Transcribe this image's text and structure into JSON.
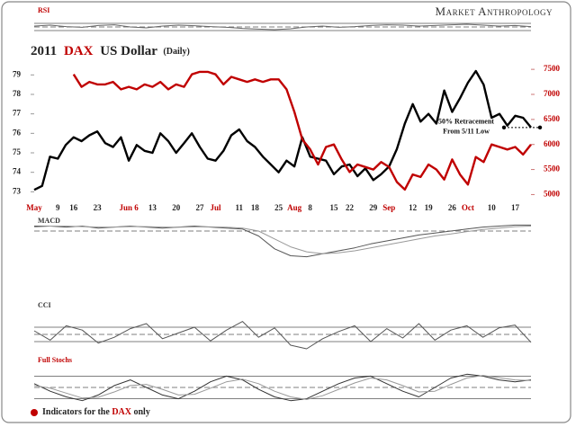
{
  "brand": "Market Anthropology",
  "footer": {
    "text1": "Indicators for the",
    "highlight": "DAX",
    "text2": "only"
  },
  "chart_data": [
    {
      "type": "line",
      "title_parts": [
        "2011",
        "DAX",
        "US Dollar",
        "(Daily)"
      ],
      "categories": [
        "May",
        null,
        null,
        "9",
        null,
        "16",
        null,
        null,
        "23",
        null,
        null,
        null,
        "Jun 6",
        null,
        null,
        "13",
        null,
        null,
        "20",
        null,
        null,
        "27",
        null,
        "Jul",
        null,
        null,
        "11",
        null,
        "18",
        null,
        null,
        "25",
        null,
        "Aug",
        null,
        "8",
        null,
        null,
        "15",
        null,
        "22",
        null,
        null,
        "29",
        null,
        "Sep",
        null,
        null,
        "12",
        null,
        "19",
        null,
        null,
        "26",
        null,
        "Oct",
        null,
        null,
        "10",
        null,
        null,
        "17",
        null,
        null
      ],
      "month_color": "#c00000",
      "series": [
        {
          "name": "US Dollar",
          "color": "#000000",
          "values": [
            73.1,
            73.3,
            74.8,
            74.7,
            75.4,
            75.8,
            75.6,
            75.9,
            76.1,
            75.5,
            75.3,
            75.8,
            74.6,
            75.4,
            75.1,
            75.0,
            76.0,
            75.6,
            75.0,
            75.5,
            76.0,
            75.3,
            74.7,
            74.6,
            75.1,
            75.9,
            76.2,
            75.6,
            75.3,
            74.8,
            74.4,
            74.0,
            74.6,
            74.3,
            75.8,
            74.8,
            74.7,
            74.6,
            73.9,
            74.3,
            74.4,
            73.8,
            74.2,
            73.6,
            73.9,
            74.3,
            75.2,
            76.5,
            77.5,
            76.6,
            77.0,
            76.5,
            78.2,
            77.1,
            77.8,
            78.6,
            79.2,
            78.5,
            76.8,
            77.0,
            76.4,
            76.9,
            76.8,
            76.3
          ]
        },
        {
          "name": "DAX",
          "color": "#c00000",
          "axis": "y2",
          "values": [
            null,
            null,
            null,
            null,
            null,
            7400,
            7150,
            7250,
            7200,
            7200,
            7250,
            7100,
            7150,
            7100,
            7200,
            7150,
            7250,
            7100,
            7200,
            7150,
            7400,
            7450,
            7450,
            7400,
            7200,
            7350,
            7300,
            7250,
            7300,
            7250,
            7300,
            7300,
            7100,
            6650,
            6100,
            5900,
            5600,
            5950,
            6000,
            5700,
            5450,
            5600,
            5550,
            5500,
            5650,
            5550,
            5250,
            5100,
            5400,
            5350,
            5600,
            5500,
            5300,
            5700,
            5400,
            5200,
            5750,
            5650,
            6000,
            5950,
            5900,
            5950,
            5800,
            6000
          ]
        }
      ],
      "ylim": [
        72.6,
        79.8
      ],
      "yticks": [
        73,
        74,
        75,
        76,
        77,
        78,
        79
      ],
      "y2lim": [
        4900,
        7700
      ],
      "y2ticks": [
        5000,
        5500,
        6000,
        6500,
        7000,
        7500
      ],
      "annotation": [
        "50% Retracement",
        "From 5/11 Low"
      ],
      "retracement_level": 76.3
    },
    {
      "type": "indicator",
      "label": "RSI",
      "label_color": "#c00000",
      "ylim": [
        0,
        100
      ],
      "levels": [
        30,
        50,
        70
      ],
      "series": [
        {
          "color": "#666666",
          "values": [
            55,
            60,
            52,
            48,
            58,
            62,
            50,
            45,
            55,
            60,
            57,
            52,
            48,
            42,
            38,
            35,
            40,
            50,
            55,
            48,
            52,
            58,
            62,
            60,
            55,
            58,
            62,
            65,
            60,
            55,
            58,
            52
          ]
        }
      ]
    },
    {
      "type": "indicator",
      "label": "MACD",
      "label_color": "#333333",
      "ylim": [
        -3,
        1
      ],
      "levels": [
        0
      ],
      "series": [
        {
          "color": "#555555",
          "values": [
            0.5,
            0.5,
            0.4,
            0.5,
            0.3,
            0.4,
            0.5,
            0.4,
            0.3,
            0.4,
            0.5,
            0.4,
            0.3,
            0.2,
            -0.5,
            -1.8,
            -2.5,
            -2.6,
            -2.3,
            -2.0,
            -1.7,
            -1.3,
            -1.0,
            -0.7,
            -0.4,
            -0.2,
            0,
            0.2,
            0.4,
            0.5,
            0.6,
            0.6
          ]
        },
        {
          "color": "#999999",
          "values": [
            0.4,
            0.5,
            0.5,
            0.45,
            0.4,
            0.4,
            0.45,
            0.45,
            0.4,
            0.38,
            0.42,
            0.42,
            0.38,
            0.3,
            0.0,
            -0.8,
            -1.6,
            -2.1,
            -2.3,
            -2.2,
            -2.0,
            -1.7,
            -1.4,
            -1.1,
            -0.8,
            -0.5,
            -0.3,
            -0.05,
            0.15,
            0.3,
            0.45,
            0.5
          ]
        }
      ]
    },
    {
      "type": "indicator",
      "label": "CCI",
      "label_color": "#333333",
      "ylim": [
        -250,
        250
      ],
      "levels": [
        -100,
        0,
        100
      ],
      "series": [
        {
          "color": "#555555",
          "values": [
            50,
            -80,
            120,
            60,
            -120,
            -40,
            80,
            150,
            -60,
            20,
            100,
            -90,
            60,
            180,
            -40,
            90,
            -150,
            -200,
            -60,
            40,
            120,
            -100,
            80,
            -50,
            150,
            -80,
            60,
            120,
            -40,
            90,
            130,
            -110
          ]
        }
      ]
    },
    {
      "type": "indicator",
      "label": "Full Stochs",
      "label_color": "#c00000",
      "ylim": [
        0,
        100
      ],
      "levels": [
        20,
        50,
        80
      ],
      "series": [
        {
          "color": "#333333",
          "values": [
            60,
            40,
            25,
            15,
            30,
            55,
            70,
            50,
            30,
            20,
            40,
            65,
            80,
            70,
            45,
            25,
            15,
            20,
            40,
            60,
            75,
            80,
            60,
            40,
            25,
            50,
            75,
            85,
            80,
            70,
            65,
            70
          ]
        },
        {
          "color": "#999999",
          "values": [
            55,
            48,
            35,
            22,
            24,
            38,
            55,
            58,
            45,
            30,
            32,
            48,
            65,
            72,
            60,
            40,
            25,
            18,
            28,
            45,
            62,
            75,
            70,
            55,
            38,
            40,
            58,
            75,
            82,
            76,
            70,
            68
          ]
        }
      ]
    }
  ]
}
